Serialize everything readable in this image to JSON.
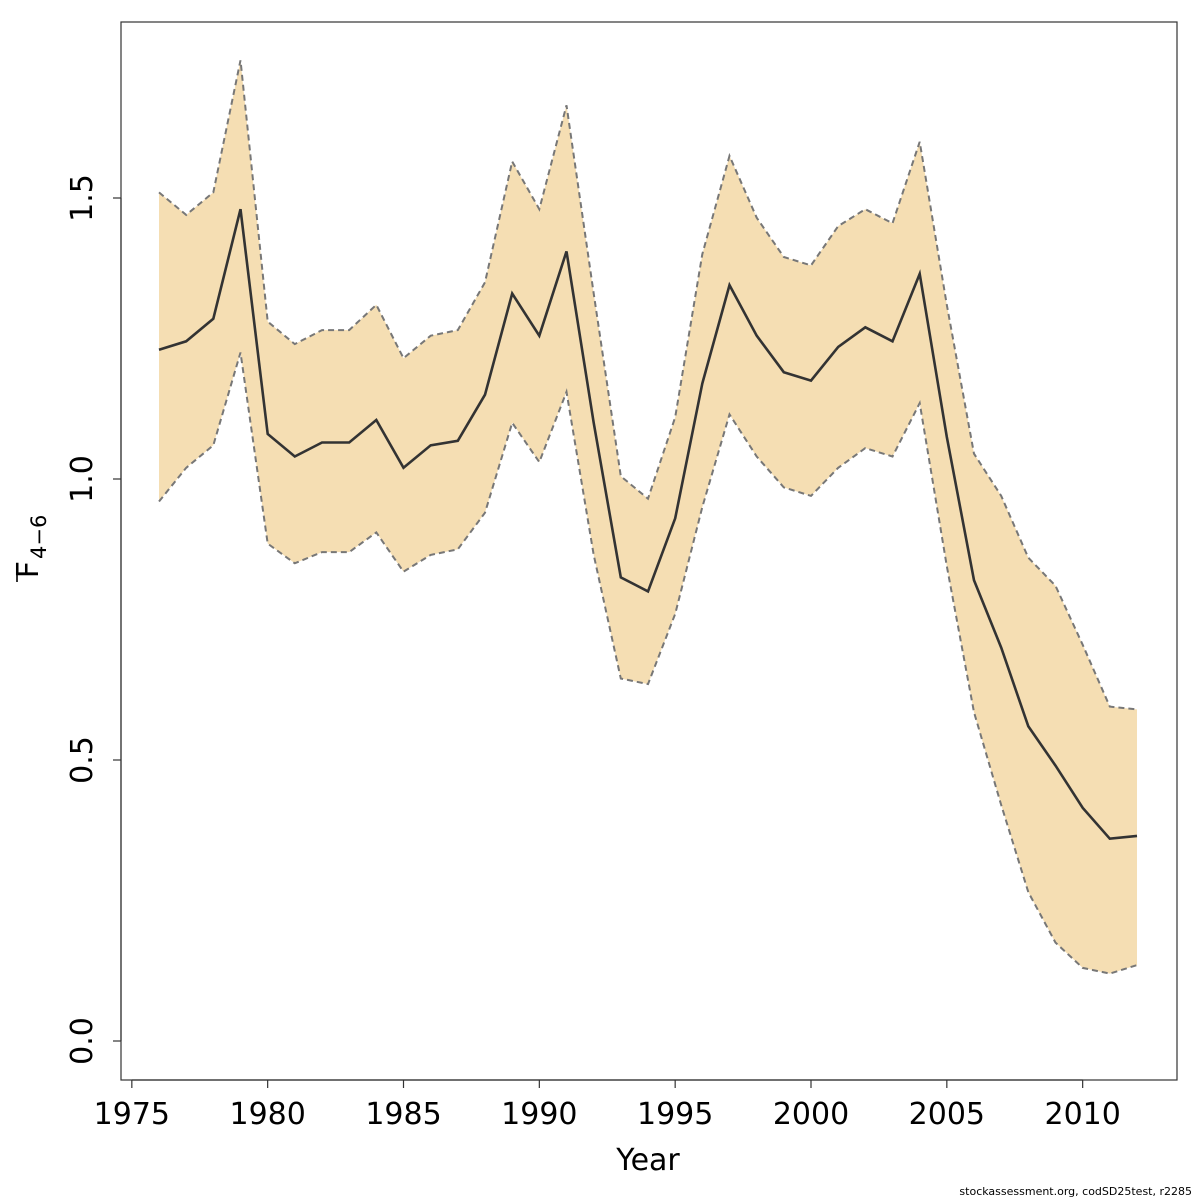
{
  "chart_data": {
    "type": "area",
    "xlabel": "Year",
    "ylabel": "F",
    "ylabel_subscript": "4−6",
    "xlim": [
      1975,
      2013
    ],
    "ylim": [
      0,
      1.8
    ],
    "x_ticks": [
      1975,
      1980,
      1985,
      1990,
      1995,
      2000,
      2005,
      2010
    ],
    "y_ticks": [
      0.0,
      0.5,
      1.0,
      1.5
    ],
    "x_tick_labels": [
      "1975",
      "1980",
      "1985",
      "1990",
      "1995",
      "2000",
      "2005",
      "2010"
    ],
    "y_tick_labels": [
      "0.0",
      "0.5",
      "1.0",
      "1.5"
    ],
    "grid": false,
    "band_color": "#F5DEB3",
    "line_color": "#333333",
    "bound_color": "#777777",
    "x": [
      1976,
      1977,
      1978,
      1979,
      1980,
      1981,
      1982,
      1983,
      1984,
      1985,
      1986,
      1987,
      1988,
      1989,
      1990,
      1991,
      1992,
      1993,
      1994,
      1995,
      1996,
      1997,
      1998,
      1999,
      2000,
      2001,
      2002,
      2003,
      2004,
      2005,
      2006,
      2007,
      2008,
      2009,
      2010,
      2011,
      2012
    ],
    "series": [
      {
        "name": "estimate",
        "values": [
          1.23,
          1.245,
          1.285,
          1.48,
          1.08,
          1.04,
          1.065,
          1.065,
          1.105,
          1.02,
          1.06,
          1.068,
          1.15,
          1.33,
          1.255,
          1.405,
          1.1,
          0.825,
          0.8,
          0.93,
          1.17,
          1.345,
          1.255,
          1.19,
          1.175,
          1.235,
          1.27,
          1.245,
          1.365,
          1.075,
          0.82,
          0.7,
          0.56,
          0.49,
          0.415,
          0.36,
          0.365
        ]
      },
      {
        "name": "upper",
        "values": [
          1.51,
          1.47,
          1.51,
          1.745,
          1.28,
          1.24,
          1.265,
          1.265,
          1.31,
          1.215,
          1.255,
          1.265,
          1.35,
          1.565,
          1.48,
          1.665,
          1.33,
          1.005,
          0.965,
          1.11,
          1.4,
          1.575,
          1.465,
          1.395,
          1.38,
          1.45,
          1.48,
          1.455,
          1.6,
          1.31,
          1.045,
          0.97,
          0.86,
          0.81,
          0.705,
          0.595,
          0.59
        ]
      },
      {
        "name": "lower",
        "values": [
          0.96,
          1.02,
          1.06,
          1.225,
          0.885,
          0.85,
          0.87,
          0.87,
          0.905,
          0.835,
          0.865,
          0.875,
          0.94,
          1.1,
          1.03,
          1.155,
          0.865,
          0.645,
          0.635,
          0.76,
          0.95,
          1.115,
          1.04,
          0.985,
          0.97,
          1.02,
          1.055,
          1.04,
          1.135,
          0.845,
          0.585,
          0.42,
          0.265,
          0.175,
          0.13,
          0.12,
          0.135
        ]
      }
    ]
  },
  "footer": {
    "credit": "stockassessment.org, codSD25test, r2285"
  }
}
